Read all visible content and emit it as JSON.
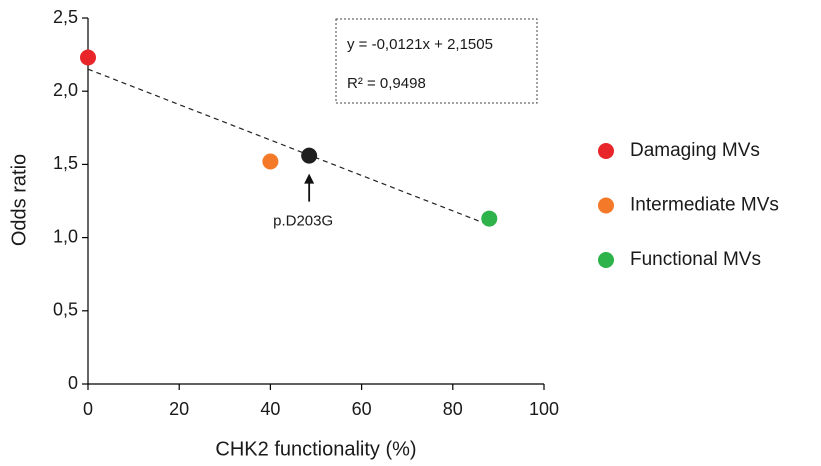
{
  "chart_data": {
    "type": "scatter",
    "x_label": "CHK2 functionality (%)",
    "y_label": "Odds ratio",
    "xlim": [
      0,
      100
    ],
    "xticks": [
      0,
      20,
      40,
      60,
      80,
      100
    ],
    "ylim": [
      0,
      2.5
    ],
    "yticks": [
      0,
      {
        "value": 0.5,
        "label": "0,5"
      },
      {
        "value": 1,
        "label": "1,0"
      },
      {
        "value": 1.5,
        "label": "1,5"
      },
      {
        "value": 2,
        "label": "2,0"
      },
      {
        "value": 2.5,
        "label": "2,5"
      }
    ],
    "series": [
      {
        "name": "Damaging MVs",
        "color": "#e8262a",
        "x": [
          0
        ],
        "values": [
          2.23
        ]
      },
      {
        "name": "Intermediate MVs",
        "color": "#f47a2a",
        "x": [
          40
        ],
        "values": [
          1.52
        ]
      },
      {
        "name": "Functional MVs",
        "color": "#2db34a",
        "x": [
          88
        ],
        "values": [
          1.13
        ]
      }
    ],
    "highlight": {
      "label": "p.D203G",
      "color": "#1f1f1f",
      "x": 48.5,
      "y": 1.56
    },
    "trendline": {
      "equation": "y = -0,0121x + 2,1505",
      "r_squared": "R² = 0,9498",
      "slope": -0.0121,
      "intercept": 2.1505
    }
  }
}
